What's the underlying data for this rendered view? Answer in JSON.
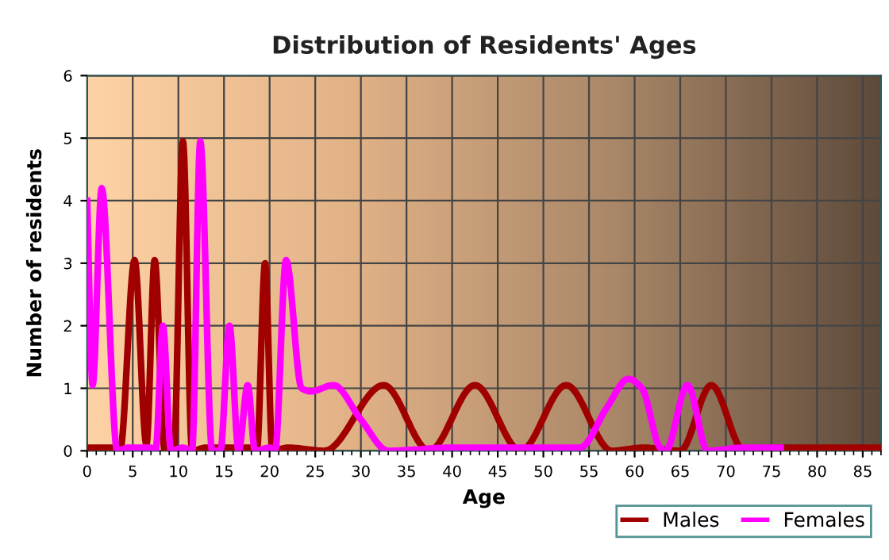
{
  "chart_data": {
    "type": "line",
    "title": "Distribution of Residents' Ages",
    "xlabel": "Age",
    "ylabel": "Number of residents",
    "xlim": [
      0,
      87
    ],
    "ylim": [
      0,
      6
    ],
    "xticks": [
      0,
      5,
      10,
      15,
      20,
      25,
      30,
      35,
      40,
      45,
      50,
      55,
      60,
      65,
      70,
      75,
      80,
      85
    ],
    "yticks": [
      0,
      1,
      2,
      3,
      4,
      5,
      6
    ],
    "grid": true,
    "legend": "bottom right",
    "marker": "none",
    "line_style": "solid",
    "series": [
      {
        "name": "Males",
        "color": "#a00000",
        "x": [
          0,
          3,
          3.6,
          5.2,
          6.5,
          7.4,
          8.5,
          9.5,
          10.5,
          11.5,
          13,
          18,
          18.6,
          19.5,
          20.3,
          22,
          26,
          32.5,
          37.5,
          42.5,
          47.5,
          52.5,
          57.5,
          61,
          65,
          68.4,
          72,
          76,
          87
        ],
        "values": [
          0.05,
          0.05,
          0,
          3.05,
          0.1,
          3.05,
          0,
          0,
          4.95,
          0,
          0.05,
          0.05,
          0,
          3,
          0,
          0.05,
          0,
          1.05,
          0,
          1.05,
          0,
          1.05,
          0,
          0.05,
          0,
          1.05,
          0,
          0.05,
          0.05
        ]
      },
      {
        "name": "Females",
        "color": "#ff00ff",
        "x": [
          0,
          0.6,
          1.6,
          3.3,
          4.5,
          7,
          7.5,
          8.3,
          9.2,
          10.5,
          11.5,
          12.4,
          13.7,
          14.6,
          15.6,
          16.6,
          17.6,
          18.4,
          20,
          20.6,
          21.8,
          23.5,
          24.5,
          27,
          30,
          33,
          40,
          54,
          57,
          59.3,
          60.8,
          62.8,
          63.4,
          65.8,
          68,
          72,
          76
        ],
        "values": [
          4,
          1.05,
          4.2,
          0,
          0.05,
          0.05,
          0,
          2,
          0,
          0.05,
          0,
          4.95,
          0,
          0,
          2,
          0,
          1.05,
          0,
          0.05,
          0,
          3.05,
          1,
          0.95,
          1.05,
          0.5,
          0,
          0.05,
          0.05,
          0.7,
          1.15,
          1,
          0.05,
          0,
          1.05,
          0,
          0.05,
          0.05
        ]
      }
    ]
  }
}
